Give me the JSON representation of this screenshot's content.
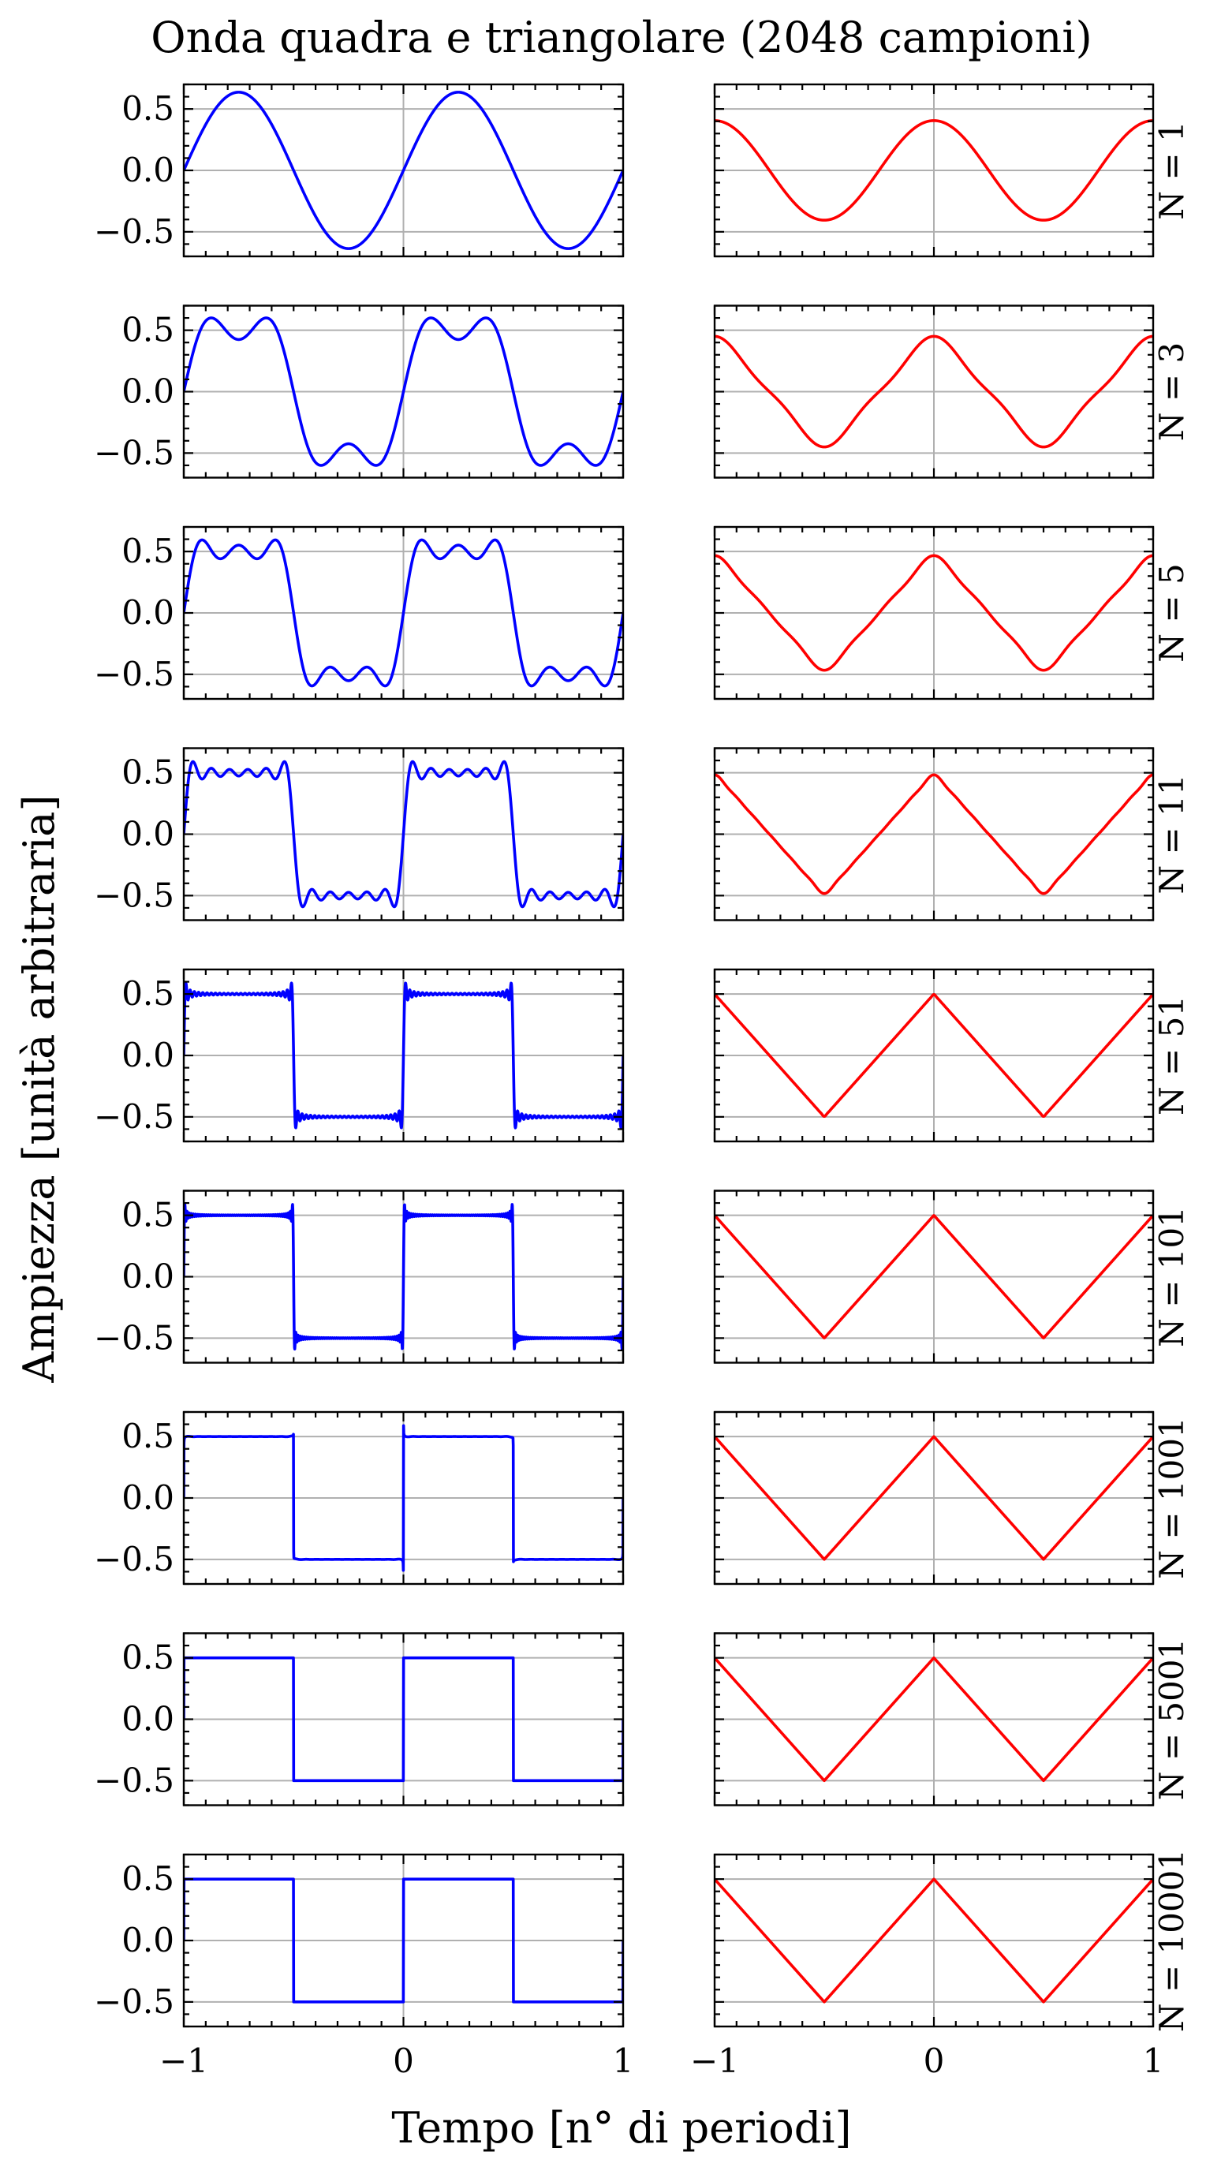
{
  "chart_data": {
    "type": "line",
    "title": "Onda quadra e triangolare (2048 campioni)",
    "xlabel": "Tempo [n° di periodi]",
    "ylabel": "Ampiezza [unità arbitraria]",
    "xlim": [
      -1,
      1
    ],
    "ylim": [
      -0.7,
      0.7
    ],
    "grid": true,
    "x_ticks": [
      -1,
      0,
      1
    ],
    "x_tick_labels": [
      "−1",
      "0",
      "1"
    ],
    "y_ticks": [
      0.5,
      0.0,
      -0.5
    ],
    "y_tick_labels": [
      "0.5",
      "0.0",
      "−0.5"
    ],
    "samples": 2048,
    "columns": [
      {
        "name": "square",
        "color": "#0000ff",
        "amplitude": 0.5
      },
      {
        "name": "triangle",
        "color": "#ff0000",
        "amplitude": 0.5
      }
    ],
    "rows": [
      {
        "label": "N = 1",
        "N": 1
      },
      {
        "label": "N = 3",
        "N": 3
      },
      {
        "label": "N = 5",
        "N": 5
      },
      {
        "label": "N = 11",
        "N": 11
      },
      {
        "label": "N = 51",
        "N": 51
      },
      {
        "label": "N = 101",
        "N": 101
      },
      {
        "label": "N = 1001",
        "N": 1001
      },
      {
        "label": "N = 5001",
        "N": 5001
      },
      {
        "label": "N = 10001",
        "N": 10001
      }
    ]
  }
}
